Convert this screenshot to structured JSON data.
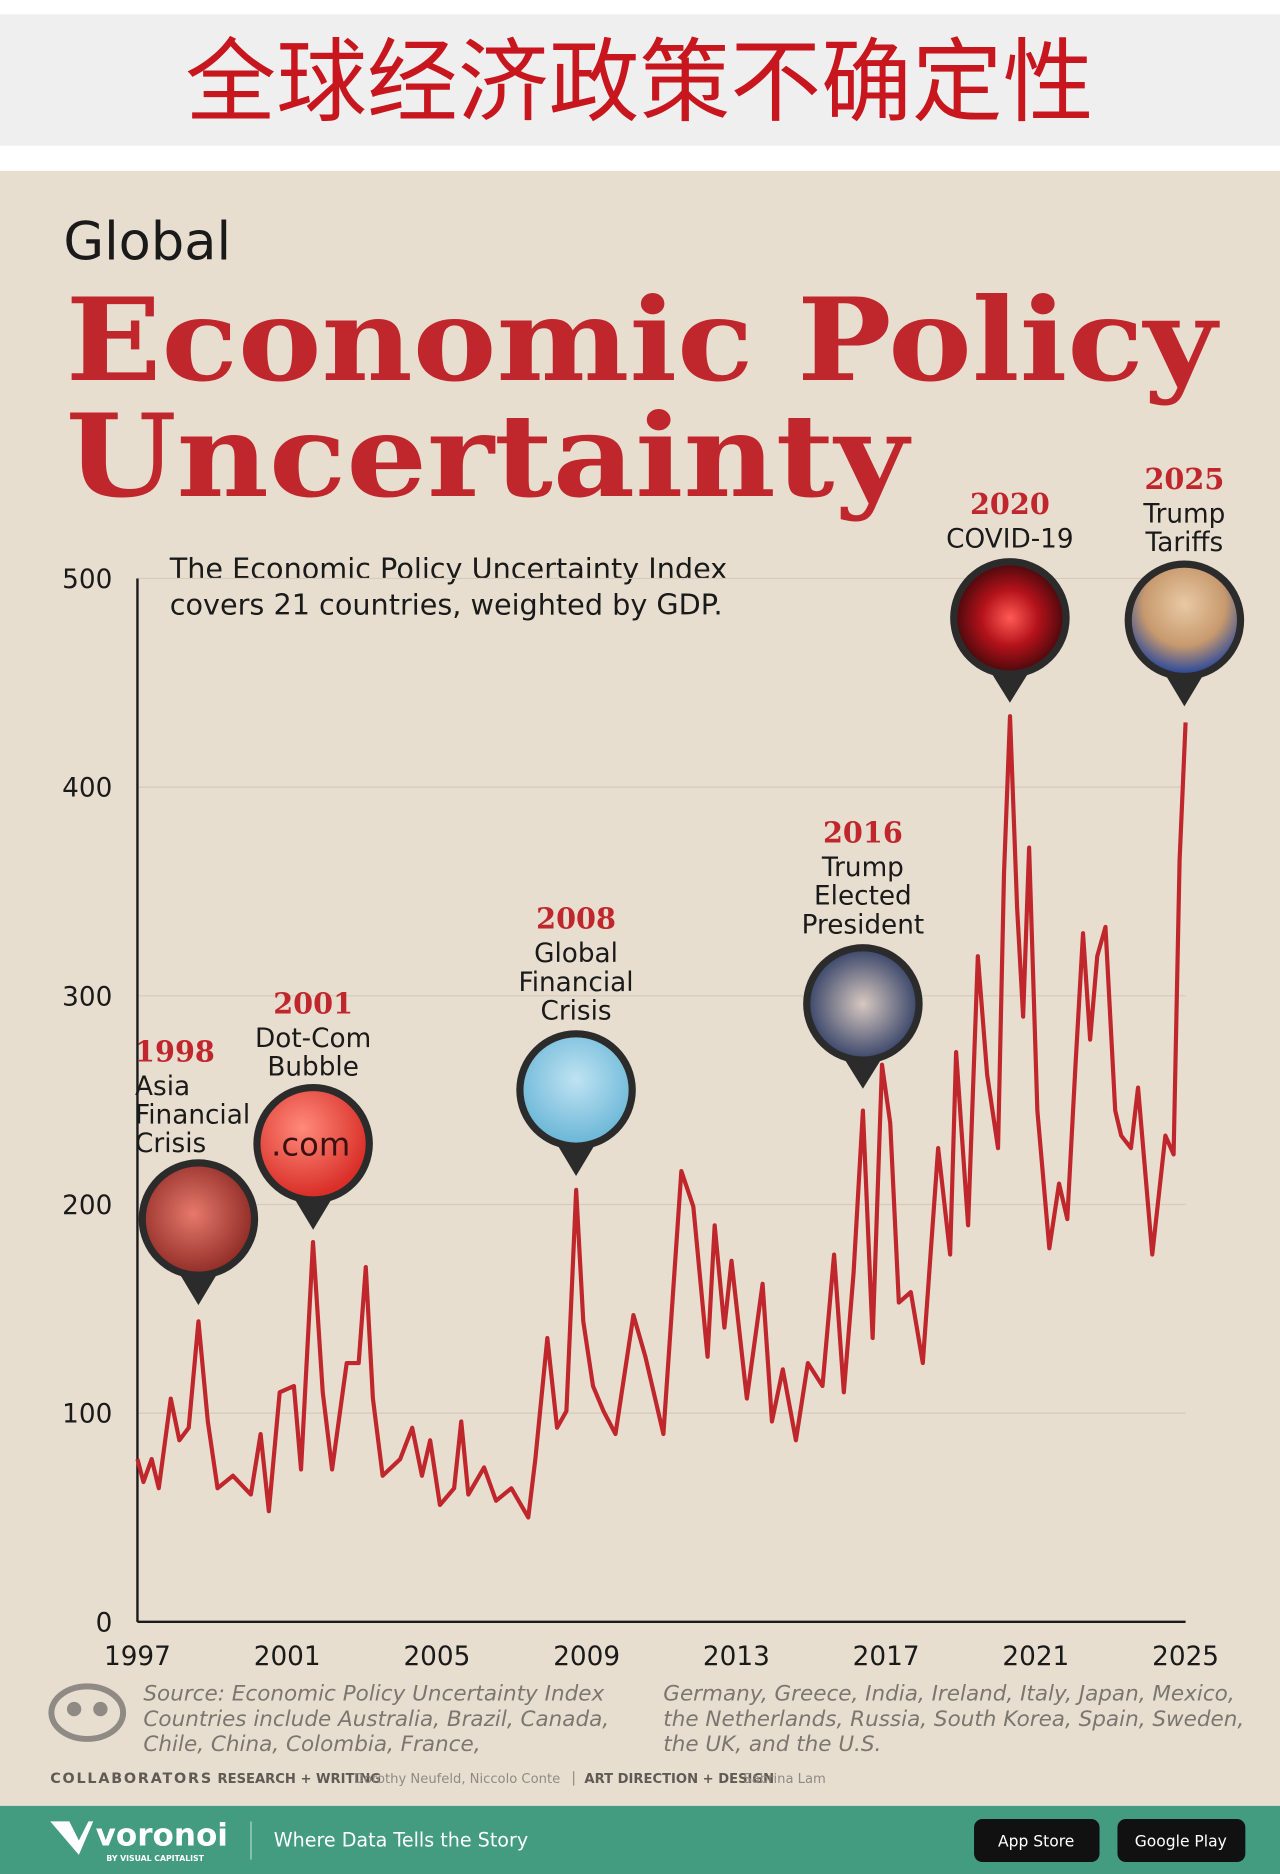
{
  "header": {
    "title": "全球经济政策不确定性"
  },
  "chart_data": {
    "type": "line",
    "supertitle": "Global",
    "title_lines": [
      "Economic Policy",
      "Uncertainty"
    ],
    "note_lines": [
      "The Economic Policy Uncertainty Index",
      "covers 21 countries, weighted by GDP."
    ],
    "color": "#c0272d",
    "x": [
      1997.0,
      1997.16,
      1997.38,
      1997.57,
      1997.89,
      1998.12,
      1998.37,
      1998.63,
      1998.88,
      1999.14,
      1999.55,
      2000.03,
      2000.29,
      2000.51,
      2000.8,
      2001.18,
      2001.37,
      2001.69,
      2001.95,
      2002.2,
      2002.59,
      2002.91,
      2003.1,
      2003.29,
      2003.55,
      2004.02,
      2004.34,
      2004.6,
      2004.82,
      2005.08,
      2005.46,
      2005.65,
      2005.84,
      2006.26,
      2006.58,
      2006.99,
      2007.44,
      2007.63,
      2007.95,
      2008.21,
      2008.46,
      2008.72,
      2008.91,
      2009.17,
      2009.45,
      2009.77,
      2010.25,
      2010.57,
      2011.05,
      2011.53,
      2011.85,
      2012.23,
      2012.42,
      2012.68,
      2012.87,
      2013.28,
      2013.7,
      2013.95,
      2014.24,
      2014.59,
      2014.91,
      2015.3,
      2015.61,
      2015.87,
      2016.13,
      2016.38,
      2016.64,
      2016.89,
      2017.11,
      2017.34,
      2017.66,
      2017.98,
      2018.39,
      2018.71,
      2018.87,
      2019.19,
      2019.45,
      2019.7,
      2019.99,
      2020.15,
      2020.31,
      2020.5,
      2020.66,
      2020.82,
      2021.04,
      2021.36,
      2021.62,
      2021.84,
      2022.06,
      2022.26,
      2022.45,
      2022.64,
      2022.86,
      2023.12,
      2023.28,
      2023.54,
      2023.73,
      2024.11,
      2024.46,
      2024.68,
      2024.84,
      2025.0
    ],
    "values": [
      78,
      67,
      78,
      64,
      107,
      87,
      93,
      144,
      96,
      64,
      70,
      61,
      90,
      53,
      110,
      113,
      73,
      182,
      110,
      73,
      124,
      124,
      170,
      107,
      70,
      78,
      93,
      70,
      87,
      56,
      64,
      96,
      61,
      74,
      58,
      64,
      50,
      78,
      136,
      93,
      101,
      207,
      144,
      113,
      101,
      90,
      147,
      127,
      90,
      216,
      199,
      127,
      190,
      141,
      173,
      107,
      162,
      96,
      121,
      87,
      124,
      113,
      176,
      110,
      167,
      245,
      136,
      267,
      239,
      153,
      158,
      124,
      227,
      176,
      273,
      190,
      319,
      262,
      227,
      359,
      434,
      342,
      290,
      371,
      245,
      179,
      210,
      193,
      267,
      330,
      279,
      319,
      333,
      245,
      233,
      227,
      256,
      176,
      233,
      224,
      365,
      431
    ],
    "xlim": [
      1997,
      2025
    ],
    "xticks": [
      1997,
      2001,
      2005,
      2009,
      2013,
      2017,
      2021,
      2025
    ],
    "ylim": [
      0,
      500
    ],
    "yticks": [
      0,
      100,
      200,
      300,
      400,
      500
    ],
    "grid": true,
    "annotations": [
      {
        "year": "1998",
        "lines": [
          "Asia",
          "Financial",
          "Crisis"
        ]
      },
      {
        "year": "2001",
        "lines": [
          "Dot-Com",
          "Bubble"
        ],
        "icon_text": ".com"
      },
      {
        "year": "2008",
        "lines": [
          "Global",
          "Financial",
          "Crisis"
        ]
      },
      {
        "year": "2016",
        "lines": [
          "Trump",
          "Elected",
          "President"
        ]
      },
      {
        "year": "2020",
        "lines": [
          "COVID-19"
        ]
      },
      {
        "year": "2025",
        "lines": [
          "Trump",
          "Tariffs"
        ]
      }
    ],
    "source": "Source: Economic Policy Uncertainty Index",
    "countries_lines": [
      "Countries include Australia, Brazil, Canada,",
      "Chile, China, Colombia, France,",
      "Germany, Greece, India, Ireland, Italy, Japan, Mexico,",
      "the Netherlands, Russia, South Korea, Spain, Sweden,",
      "the UK, and the U.S."
    ]
  },
  "credits": {
    "label": "COLLABORATORS",
    "research_label": "RESEARCH + WRITING",
    "research": "Dorothy Neufeld, Niccolo Conte",
    "design_label": "ART DIRECTION + DESIGN",
    "design": "Sabrina Lam"
  },
  "footer": {
    "brand": "voronoi",
    "brand_sub": "BY VISUAL CAPITALIST",
    "tagline": "Where Data Tells the Story",
    "app_store": "App Store",
    "google_play": "Google Play"
  }
}
